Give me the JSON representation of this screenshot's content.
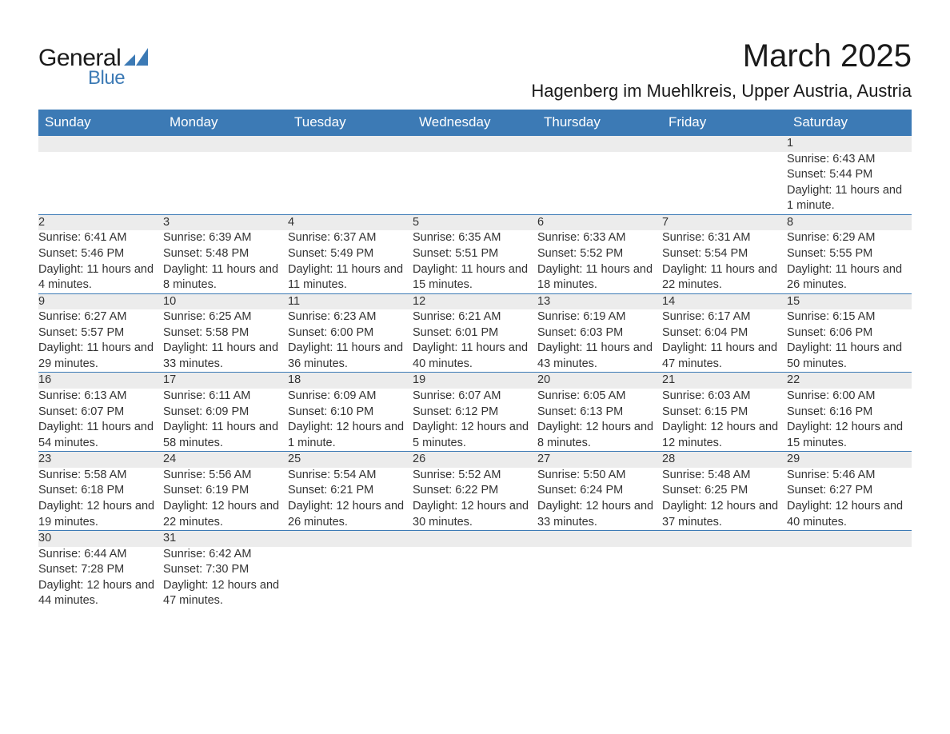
{
  "logo": {
    "text1": "General",
    "text2": "Blue",
    "brand_color": "#3c7ab5"
  },
  "title": "March 2025",
  "location": "Hagenberg im Muehlkreis, Upper Austria, Austria",
  "header_bg": "#3c7ab5",
  "header_fg": "#ffffff",
  "row_divider": "#3c7ab5",
  "daynum_bg": "#ececec",
  "text_color": "#333333",
  "weekdays": [
    "Sunday",
    "Monday",
    "Tuesday",
    "Wednesday",
    "Thursday",
    "Friday",
    "Saturday"
  ],
  "weeks": [
    [
      null,
      null,
      null,
      null,
      null,
      null,
      {
        "d": "1",
        "sr": "Sunrise: 6:43 AM",
        "ss": "Sunset: 5:44 PM",
        "dl": "Daylight: 11 hours and 1 minute."
      }
    ],
    [
      {
        "d": "2",
        "sr": "Sunrise: 6:41 AM",
        "ss": "Sunset: 5:46 PM",
        "dl": "Daylight: 11 hours and 4 minutes."
      },
      {
        "d": "3",
        "sr": "Sunrise: 6:39 AM",
        "ss": "Sunset: 5:48 PM",
        "dl": "Daylight: 11 hours and 8 minutes."
      },
      {
        "d": "4",
        "sr": "Sunrise: 6:37 AM",
        "ss": "Sunset: 5:49 PM",
        "dl": "Daylight: 11 hours and 11 minutes."
      },
      {
        "d": "5",
        "sr": "Sunrise: 6:35 AM",
        "ss": "Sunset: 5:51 PM",
        "dl": "Daylight: 11 hours and 15 minutes."
      },
      {
        "d": "6",
        "sr": "Sunrise: 6:33 AM",
        "ss": "Sunset: 5:52 PM",
        "dl": "Daylight: 11 hours and 18 minutes."
      },
      {
        "d": "7",
        "sr": "Sunrise: 6:31 AM",
        "ss": "Sunset: 5:54 PM",
        "dl": "Daylight: 11 hours and 22 minutes."
      },
      {
        "d": "8",
        "sr": "Sunrise: 6:29 AM",
        "ss": "Sunset: 5:55 PM",
        "dl": "Daylight: 11 hours and 26 minutes."
      }
    ],
    [
      {
        "d": "9",
        "sr": "Sunrise: 6:27 AM",
        "ss": "Sunset: 5:57 PM",
        "dl": "Daylight: 11 hours and 29 minutes."
      },
      {
        "d": "10",
        "sr": "Sunrise: 6:25 AM",
        "ss": "Sunset: 5:58 PM",
        "dl": "Daylight: 11 hours and 33 minutes."
      },
      {
        "d": "11",
        "sr": "Sunrise: 6:23 AM",
        "ss": "Sunset: 6:00 PM",
        "dl": "Daylight: 11 hours and 36 minutes."
      },
      {
        "d": "12",
        "sr": "Sunrise: 6:21 AM",
        "ss": "Sunset: 6:01 PM",
        "dl": "Daylight: 11 hours and 40 minutes."
      },
      {
        "d": "13",
        "sr": "Sunrise: 6:19 AM",
        "ss": "Sunset: 6:03 PM",
        "dl": "Daylight: 11 hours and 43 minutes."
      },
      {
        "d": "14",
        "sr": "Sunrise: 6:17 AM",
        "ss": "Sunset: 6:04 PM",
        "dl": "Daylight: 11 hours and 47 minutes."
      },
      {
        "d": "15",
        "sr": "Sunrise: 6:15 AM",
        "ss": "Sunset: 6:06 PM",
        "dl": "Daylight: 11 hours and 50 minutes."
      }
    ],
    [
      {
        "d": "16",
        "sr": "Sunrise: 6:13 AM",
        "ss": "Sunset: 6:07 PM",
        "dl": "Daylight: 11 hours and 54 minutes."
      },
      {
        "d": "17",
        "sr": "Sunrise: 6:11 AM",
        "ss": "Sunset: 6:09 PM",
        "dl": "Daylight: 11 hours and 58 minutes."
      },
      {
        "d": "18",
        "sr": "Sunrise: 6:09 AM",
        "ss": "Sunset: 6:10 PM",
        "dl": "Daylight: 12 hours and 1 minute."
      },
      {
        "d": "19",
        "sr": "Sunrise: 6:07 AM",
        "ss": "Sunset: 6:12 PM",
        "dl": "Daylight: 12 hours and 5 minutes."
      },
      {
        "d": "20",
        "sr": "Sunrise: 6:05 AM",
        "ss": "Sunset: 6:13 PM",
        "dl": "Daylight: 12 hours and 8 minutes."
      },
      {
        "d": "21",
        "sr": "Sunrise: 6:03 AM",
        "ss": "Sunset: 6:15 PM",
        "dl": "Daylight: 12 hours and 12 minutes."
      },
      {
        "d": "22",
        "sr": "Sunrise: 6:00 AM",
        "ss": "Sunset: 6:16 PM",
        "dl": "Daylight: 12 hours and 15 minutes."
      }
    ],
    [
      {
        "d": "23",
        "sr": "Sunrise: 5:58 AM",
        "ss": "Sunset: 6:18 PM",
        "dl": "Daylight: 12 hours and 19 minutes."
      },
      {
        "d": "24",
        "sr": "Sunrise: 5:56 AM",
        "ss": "Sunset: 6:19 PM",
        "dl": "Daylight: 12 hours and 22 minutes."
      },
      {
        "d": "25",
        "sr": "Sunrise: 5:54 AM",
        "ss": "Sunset: 6:21 PM",
        "dl": "Daylight: 12 hours and 26 minutes."
      },
      {
        "d": "26",
        "sr": "Sunrise: 5:52 AM",
        "ss": "Sunset: 6:22 PM",
        "dl": "Daylight: 12 hours and 30 minutes."
      },
      {
        "d": "27",
        "sr": "Sunrise: 5:50 AM",
        "ss": "Sunset: 6:24 PM",
        "dl": "Daylight: 12 hours and 33 minutes."
      },
      {
        "d": "28",
        "sr": "Sunrise: 5:48 AM",
        "ss": "Sunset: 6:25 PM",
        "dl": "Daylight: 12 hours and 37 minutes."
      },
      {
        "d": "29",
        "sr": "Sunrise: 5:46 AM",
        "ss": "Sunset: 6:27 PM",
        "dl": "Daylight: 12 hours and 40 minutes."
      }
    ],
    [
      {
        "d": "30",
        "sr": "Sunrise: 6:44 AM",
        "ss": "Sunset: 7:28 PM",
        "dl": "Daylight: 12 hours and 44 minutes."
      },
      {
        "d": "31",
        "sr": "Sunrise: 6:42 AM",
        "ss": "Sunset: 7:30 PM",
        "dl": "Daylight: 12 hours and 47 minutes."
      },
      null,
      null,
      null,
      null,
      null
    ]
  ]
}
